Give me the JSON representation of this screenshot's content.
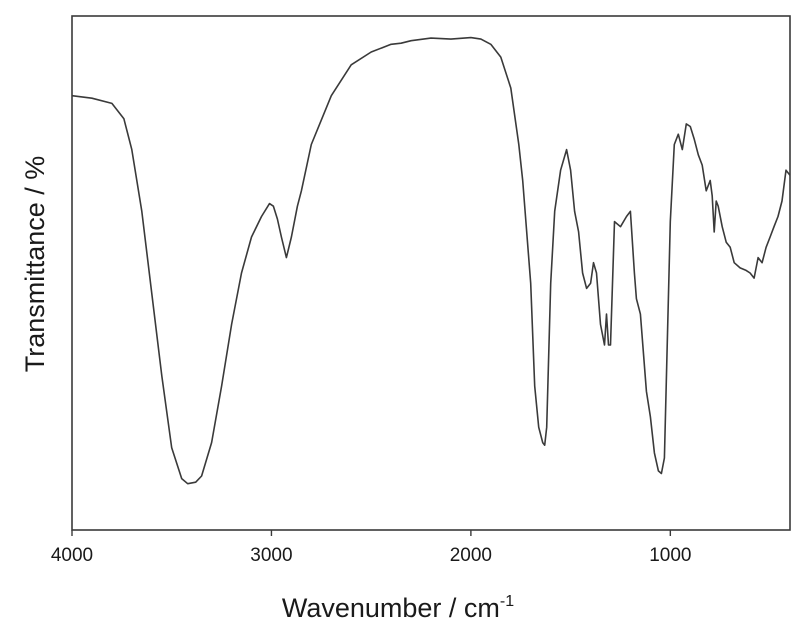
{
  "chart_data": {
    "type": "line",
    "title": "",
    "xlabel": "Wavenumber / cm",
    "xlabel_superscript": "-1",
    "ylabel": "Transmittance / %",
    "xlim": [
      4000,
      400
    ],
    "x_reversed": true,
    "x_ticks": [
      4000,
      3000,
      2000,
      1000
    ],
    "ylim": [
      0,
      100
    ],
    "y_ticks_shown": false,
    "grid": false,
    "legend": "none",
    "colors": {
      "line": "#3a3a3a",
      "frame": "#3a3a3a"
    },
    "series": [
      {
        "x": [
          4000,
          3900,
          3800,
          3740,
          3700,
          3650,
          3600,
          3550,
          3500,
          3450,
          3420,
          3380,
          3350,
          3300,
          3250,
          3200,
          3150,
          3100,
          3050,
          3010,
          2990,
          2970,
          2950,
          2925,
          2900,
          2870,
          2850,
          2800,
          2700,
          2600,
          2500,
          2400,
          2350,
          2300,
          2200,
          2100,
          2000,
          1950,
          1900,
          1850,
          1800,
          1760,
          1740,
          1700,
          1680,
          1660,
          1640,
          1630,
          1620,
          1600,
          1580,
          1550,
          1520,
          1500,
          1480,
          1460,
          1440,
          1420,
          1400,
          1385,
          1370,
          1350,
          1330,
          1320,
          1310,
          1300,
          1280,
          1250,
          1220,
          1200,
          1180,
          1170,
          1150,
          1120,
          1100,
          1080,
          1060,
          1045,
          1030,
          1000,
          980,
          960,
          940,
          920,
          900,
          880,
          860,
          840,
          820,
          800,
          790,
          780,
          770,
          760,
          740,
          720,
          700,
          680,
          650,
          620,
          600,
          580,
          570,
          560,
          540,
          520,
          500,
          480,
          460,
          440,
          420,
          400
        ],
        "y": [
          84.5,
          84,
          83,
          80,
          74,
          62,
          46,
          30,
          16,
          10,
          9,
          9.3,
          10.5,
          17,
          28,
          40,
          50,
          57,
          61,
          63.5,
          63,
          60.5,
          57,
          53,
          57,
          63,
          66,
          75,
          84.5,
          90.5,
          93,
          94.5,
          94.7,
          95.2,
          95.7,
          95.5,
          95.8,
          95.5,
          94.5,
          92,
          86,
          75,
          68,
          48,
          28,
          20,
          17,
          16.5,
          20,
          48,
          62,
          70,
          74,
          70,
          62,
          58,
          50,
          47,
          48,
          52,
          50,
          40,
          36,
          42,
          36,
          36,
          60,
          59,
          61,
          62,
          50,
          45,
          42,
          27,
          22,
          15,
          11.5,
          11,
          14,
          60,
          75,
          77,
          74,
          79,
          78.5,
          76,
          73,
          71,
          66,
          68,
          65,
          58,
          64,
          63,
          59,
          56,
          55,
          52,
          51,
          50.5,
          50,
          49,
          51,
          53,
          52,
          55,
          57,
          59,
          61,
          64,
          70,
          69
        ]
      }
    ]
  }
}
